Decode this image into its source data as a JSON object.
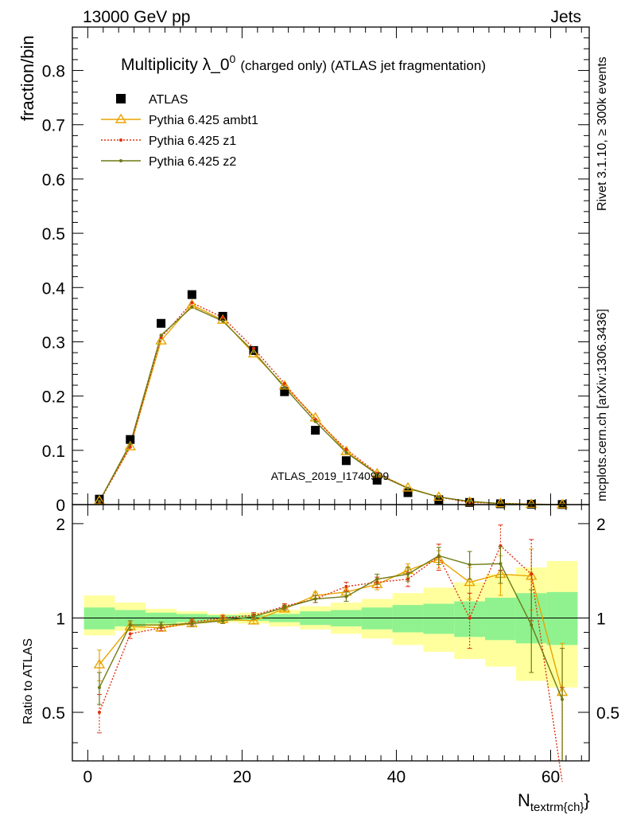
{
  "header": {
    "left": "13000 GeV pp",
    "right": "Jets",
    "title_main": "Multiplicity λ_0",
    "title_sup": "0",
    "title_sub": "(charged only) (ATLAS jet fragmentation)",
    "side_rivet": "Rivet 3.1.10, ≥ 300k events",
    "side_mcplots": "mcplots.cern.ch [arXiv:1306.3436]",
    "watermark": "ATLAS_2019_I1740909"
  },
  "chart_data": [
    {
      "type": "scatter",
      "panel": "main",
      "ylabel": "fraction/bin",
      "xlabel": "",
      "xlim": [
        -2,
        65
      ],
      "ylim": [
        0,
        0.88
      ],
      "yticks": [
        0,
        0.1,
        0.2,
        0.3,
        0.4,
        0.5,
        0.6,
        0.7,
        0.8
      ],
      "ytick_labels": [
        "0",
        "0.1",
        "0.2",
        "0.3",
        "0.4",
        "0.5",
        "0.6",
        "0.7",
        "0.8"
      ],
      "x": [
        1.5,
        5.5,
        9.5,
        13.5,
        17.5,
        21.5,
        25.5,
        29.5,
        33.5,
        37.5,
        41.5,
        45.5,
        49.5,
        53.5,
        57.5,
        61.5
      ],
      "legend_position": "top-left",
      "series": [
        {
          "name": "ATLAS",
          "color": "#000000",
          "marker": "square",
          "values": [
            0.01,
            0.12,
            0.334,
            0.387,
            0.347,
            0.284,
            0.208,
            0.137,
            0.081,
            0.045,
            0.022,
            0.009,
            0.004,
            0.0015,
            0.0006,
            0.0002
          ]
        },
        {
          "name": "Pythia 6.425 ambt1",
          "color": "#e8a400",
          "marker": "triangle",
          "values": [
            0.007,
            0.107,
            0.302,
            0.368,
            0.34,
            0.278,
            0.219,
            0.16,
            0.098,
            0.057,
            0.031,
            0.014,
            0.005,
            0.002,
            0.0008,
            0.0001
          ]
        },
        {
          "name": "Pythia 6.425 z1",
          "color": "#e03010",
          "marker": "dot",
          "dash": true,
          "values": [
            0.005,
            0.106,
            0.308,
            0.372,
            0.345,
            0.288,
            0.223,
            0.157,
            0.102,
            0.058,
            0.03,
            0.014,
            0.004,
            0.0025,
            0.0008,
            0.0001
          ]
        },
        {
          "name": "Pythia 6.425 z2",
          "color": "#6e7a14",
          "marker": "dot",
          "values": [
            0.006,
            0.112,
            0.312,
            0.364,
            0.338,
            0.282,
            0.216,
            0.153,
            0.096,
            0.056,
            0.03,
            0.014,
            0.006,
            0.002,
            0.0005,
            0.0001
          ]
        }
      ]
    },
    {
      "type": "line",
      "panel": "ratio",
      "ylabel": "Ratio to ATLAS",
      "xlabel_main": "N",
      "xlabel_sub": "textrm{ch}",
      "xlim": [
        -2,
        65
      ],
      "ylim": [
        0.35,
        2.3
      ],
      "yticks": [
        0.5,
        1,
        2
      ],
      "ytick_labels": [
        "0.5",
        "1",
        "2"
      ],
      "xticks": [
        0,
        20,
        40,
        60
      ],
      "xtick_labels": [
        "0",
        "20",
        "40",
        "60"
      ],
      "bin_edges": [
        -0.5,
        3.5,
        7.5,
        11.5,
        15.5,
        19.5,
        23.5,
        27.5,
        31.5,
        35.5,
        39.5,
        43.5,
        47.5,
        51.5,
        55.5,
        59.5,
        63.5
      ],
      "band_green": [
        [
          0.92,
          1.08
        ],
        [
          0.94,
          1.06
        ],
        [
          0.96,
          1.04
        ],
        [
          0.97,
          1.03
        ],
        [
          0.98,
          1.02
        ],
        [
          0.98,
          1.02
        ],
        [
          0.97,
          1.03
        ],
        [
          0.95,
          1.05
        ],
        [
          0.94,
          1.06
        ],
        [
          0.92,
          1.08
        ],
        [
          0.9,
          1.1
        ],
        [
          0.89,
          1.11
        ],
        [
          0.87,
          1.13
        ],
        [
          0.85,
          1.16
        ],
        [
          0.83,
          1.2
        ],
        [
          0.82,
          1.21
        ]
      ],
      "band_yellow": [
        [
          0.88,
          1.18
        ],
        [
          0.91,
          1.12
        ],
        [
          0.94,
          1.07
        ],
        [
          0.96,
          1.05
        ],
        [
          0.97,
          1.03
        ],
        [
          0.96,
          1.04
        ],
        [
          0.94,
          1.06
        ],
        [
          0.92,
          1.09
        ],
        [
          0.89,
          1.12
        ],
        [
          0.86,
          1.15
        ],
        [
          0.82,
          1.2
        ],
        [
          0.78,
          1.25
        ],
        [
          0.74,
          1.3
        ],
        [
          0.7,
          1.38
        ],
        [
          0.63,
          1.45
        ],
        [
          0.6,
          1.52
        ]
      ],
      "x": [
        1.5,
        5.5,
        9.5,
        13.5,
        17.5,
        21.5,
        25.5,
        29.5,
        33.5,
        37.5,
        41.5,
        45.5,
        49.5,
        53.5,
        57.5,
        61.5
      ],
      "series": [
        {
          "name": "Pythia 6.425 ambt1",
          "color": "#e8a400",
          "marker": "triangle",
          "values": [
            0.71,
            0.94,
            0.93,
            0.96,
            0.99,
            0.98,
            1.07,
            1.18,
            1.21,
            1.28,
            1.42,
            1.54,
            1.3,
            1.38,
            1.36,
            0.58
          ],
          "err": [
            0.08,
            0.03,
            0.02,
            0.02,
            0.02,
            0.02,
            0.02,
            0.03,
            0.04,
            0.05,
            0.07,
            0.1,
            0.15,
            0.2,
            0.3,
            0.25
          ]
        },
        {
          "name": "Pythia 6.425 z1",
          "color": "#e03010",
          "marker": "dot",
          "dash": true,
          "values": [
            0.5,
            0.89,
            0.93,
            0.97,
            1.0,
            1.02,
            1.09,
            1.15,
            1.26,
            1.3,
            1.33,
            1.57,
            1.0,
            1.7,
            1.38,
            0.3
          ],
          "err": [
            0.07,
            0.03,
            0.02,
            0.02,
            0.02,
            0.02,
            0.02,
            0.03,
            0.04,
            0.05,
            0.07,
            0.15,
            0.2,
            0.28,
            0.4,
            0.3
          ]
        },
        {
          "name": "Pythia 6.425 z2",
          "color": "#6e7a14",
          "marker": "dot",
          "values": [
            0.6,
            0.95,
            0.95,
            0.96,
            0.98,
            1.01,
            1.08,
            1.15,
            1.17,
            1.33,
            1.38,
            1.58,
            1.48,
            1.49,
            0.95,
            0.55
          ],
          "err": [
            0.07,
            0.03,
            0.02,
            0.02,
            0.02,
            0.02,
            0.02,
            0.03,
            0.04,
            0.05,
            0.07,
            0.1,
            0.15,
            0.2,
            0.28,
            0.25
          ]
        }
      ]
    }
  ]
}
